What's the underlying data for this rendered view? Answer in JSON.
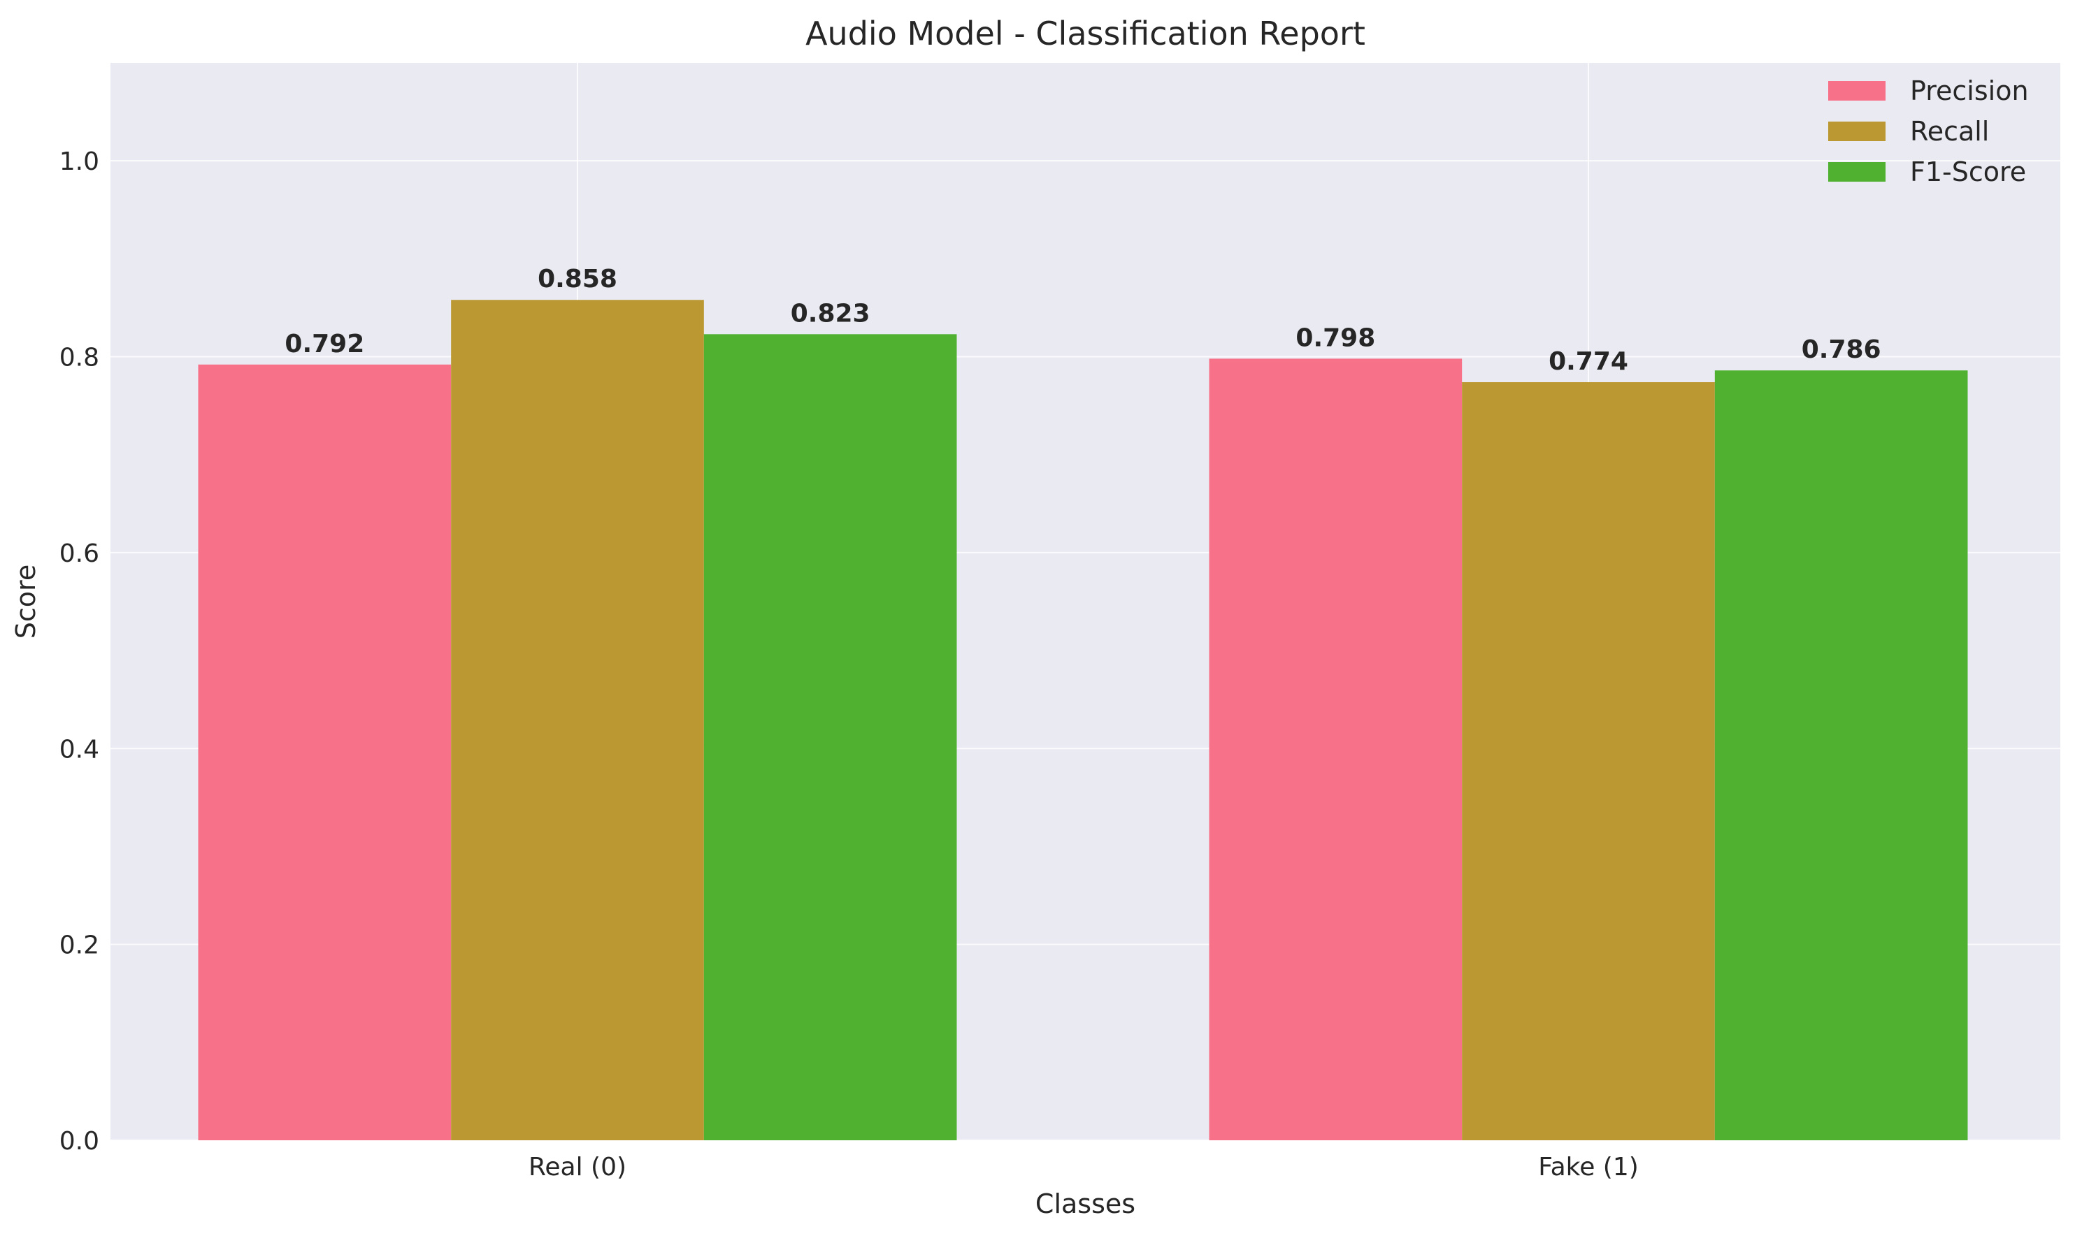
{
  "chart_data": {
    "type": "bar",
    "title": "Audio Model - Classification Report",
    "xlabel": "Classes",
    "ylabel": "Score",
    "categories": [
      "Real (0)",
      "Fake (1)"
    ],
    "series": [
      {
        "name": "Precision",
        "values": [
          0.792,
          0.798
        ],
        "labels": [
          "0.792",
          "0.798"
        ],
        "color": "#f77189"
      },
      {
        "name": "Recall",
        "values": [
          0.858,
          0.774
        ],
        "labels": [
          "0.858",
          "0.774"
        ],
        "color": "#bb9832"
      },
      {
        "name": "F1-Score",
        "values": [
          0.823,
          0.786
        ],
        "labels": [
          "0.823",
          "0.786"
        ],
        "color": "#50b131"
      }
    ],
    "ylim": [
      0,
      1.1
    ],
    "yticks": [
      0.0,
      0.2,
      0.4,
      0.6,
      0.8,
      1.0
    ],
    "ytick_labels": [
      "0.0",
      "0.2",
      "0.4",
      "0.6",
      "0.8",
      "1.0"
    ],
    "grid": true,
    "legend_position": "top-right",
    "background_color": "#eaeaf2",
    "grid_color": "#ffffff"
  }
}
